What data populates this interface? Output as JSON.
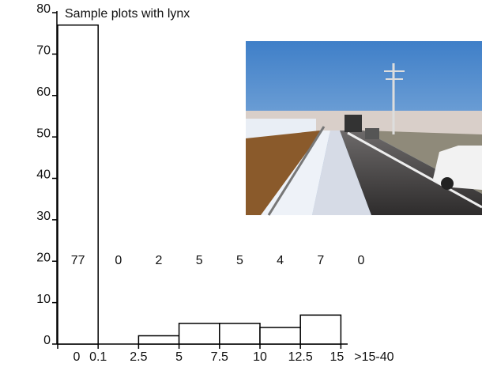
{
  "chart_data": {
    "type": "bar",
    "title": "Sample plots with lynx",
    "values": [
      77,
      0,
      2,
      5,
      5,
      4,
      7,
      0
    ],
    "xticklabels": [
      "0",
      "0.1",
      "2.5",
      "5",
      "7.5",
      "10",
      "12.5",
      "15",
      ">15-40"
    ],
    "color": "#ffffff",
    "ylim": [
      0,
      80
    ],
    "yticks": [
      0,
      10,
      20,
      30,
      40,
      50,
      60,
      70,
      80
    ],
    "grid": false
  }
}
